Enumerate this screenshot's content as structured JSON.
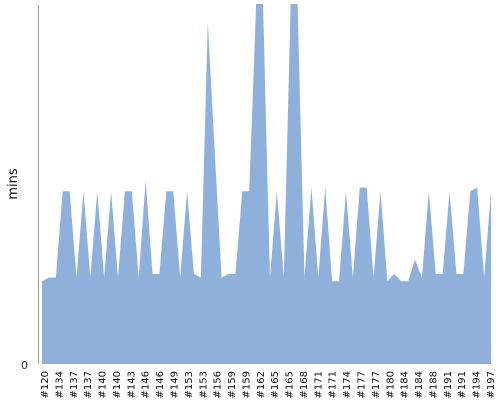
{
  "chart_data": {
    "type": "area",
    "ylabel": "mins",
    "y_tick_labels": [
      "0"
    ],
    "ylim": [
      0,
      100
    ],
    "color": "#8fb0db",
    "axis_color": "#999999",
    "x_tick_labels": [
      "#120",
      "#134",
      "#137",
      "#137",
      "#140",
      "#140",
      "#143",
      "#146",
      "#146",
      "#149",
      "#153",
      "#153",
      "#156",
      "#159",
      "#159",
      "#162",
      "#165",
      "#165",
      "#168",
      "#171",
      "#171",
      "#174",
      "#177",
      "#177",
      "#180",
      "#184",
      "#184",
      "#188",
      "#191",
      "#191",
      "#194",
      "#197"
    ],
    "series": [
      {
        "values": [
          23,
          24,
          24,
          48,
          48,
          24,
          48,
          24,
          48,
          24,
          48,
          24,
          48,
          48,
          24,
          51,
          25,
          25,
          48,
          48,
          24,
          48,
          25,
          24,
          95,
          59,
          24,
          25,
          25,
          48,
          48,
          100,
          100,
          24,
          48,
          24,
          100,
          100,
          24,
          49,
          24,
          49,
          23,
          23,
          48,
          24,
          49,
          49,
          24,
          48,
          23,
          25,
          23,
          23,
          29,
          24,
          48,
          25,
          25,
          48,
          25,
          25,
          48,
          49,
          24,
          48
        ]
      }
    ]
  }
}
